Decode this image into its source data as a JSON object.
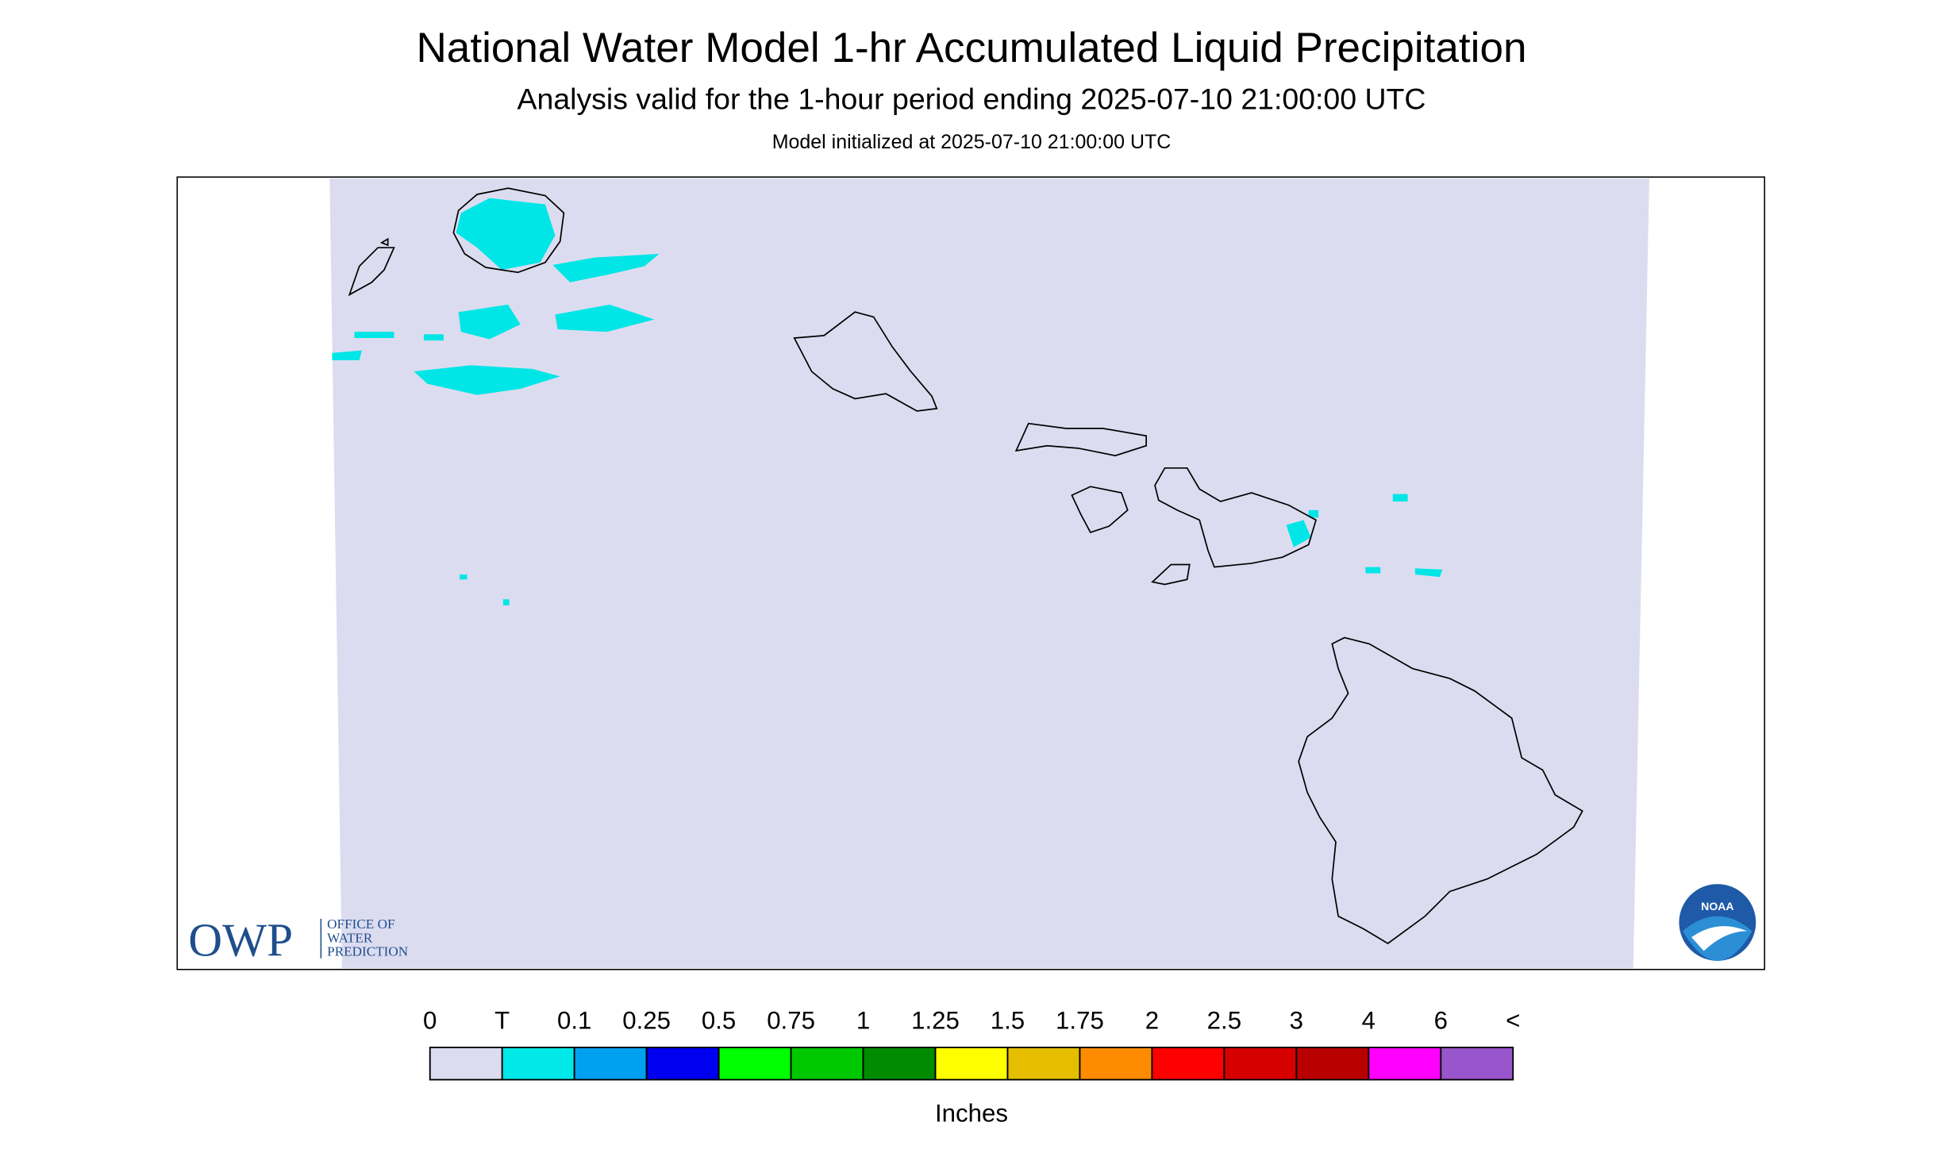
{
  "header": {
    "title": "National Water Model 1-hr Accumulated Liquid Precipitation",
    "subtitle": "Analysis valid for the 1-hour period ending 2025-07-10 21:00:00 UTC",
    "note": "Model initialized at 2025-07-10 21:00:00 UTC"
  },
  "logos": {
    "owp": "OWP",
    "owp_name": [
      "OFFICE OF",
      "WATER",
      "PREDICTION"
    ],
    "noaa": "NOAA"
  },
  "legend": {
    "labels": [
      "0",
      "T",
      "0.1",
      "0.25",
      "0.5",
      "0.75",
      "1",
      "1.25",
      "1.5",
      "1.75",
      "2",
      "2.5",
      "3",
      "4",
      "6",
      "<"
    ],
    "colors": [
      "#dcdcf0",
      "#00e8e8",
      "#00a0f0",
      "#0000f0",
      "#00ff00",
      "#00c800",
      "#008c00",
      "#ffff00",
      "#e6be00",
      "#ff8c00",
      "#ff0000",
      "#d70000",
      "#b90000",
      "#ff00ff",
      "#9955cc"
    ],
    "unit": "Inches"
  }
}
